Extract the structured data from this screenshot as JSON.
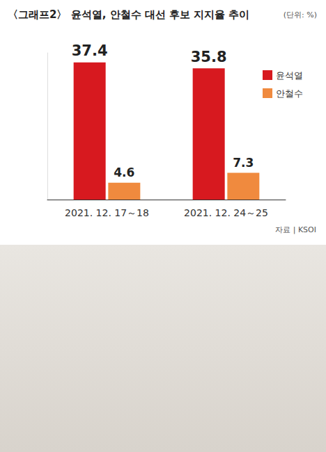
{
  "chart_data": {
    "type": "bar",
    "title": "〈그래프2〉 윤석열, 안철수 대선 후보 지지율 추이",
    "subtitle": "(단위: %)",
    "categories": [
      "2021. 12. 17～18",
      "2021. 12. 24～25"
    ],
    "series": [
      {
        "name": "윤석열",
        "color": "#d7191f",
        "values": [
          37.4,
          35.8
        ]
      },
      {
        "name": "안철수",
        "color": "#f08a3e",
        "values": [
          4.6,
          7.3
        ]
      }
    ],
    "ylim": [
      0,
      40
    ],
    "yticks": [
      0,
      40
    ],
    "grid": false,
    "legend": "right",
    "data_labels": true,
    "tick_labels": "x",
    "annotations": [
      "자료 | KSOI"
    ]
  }
}
